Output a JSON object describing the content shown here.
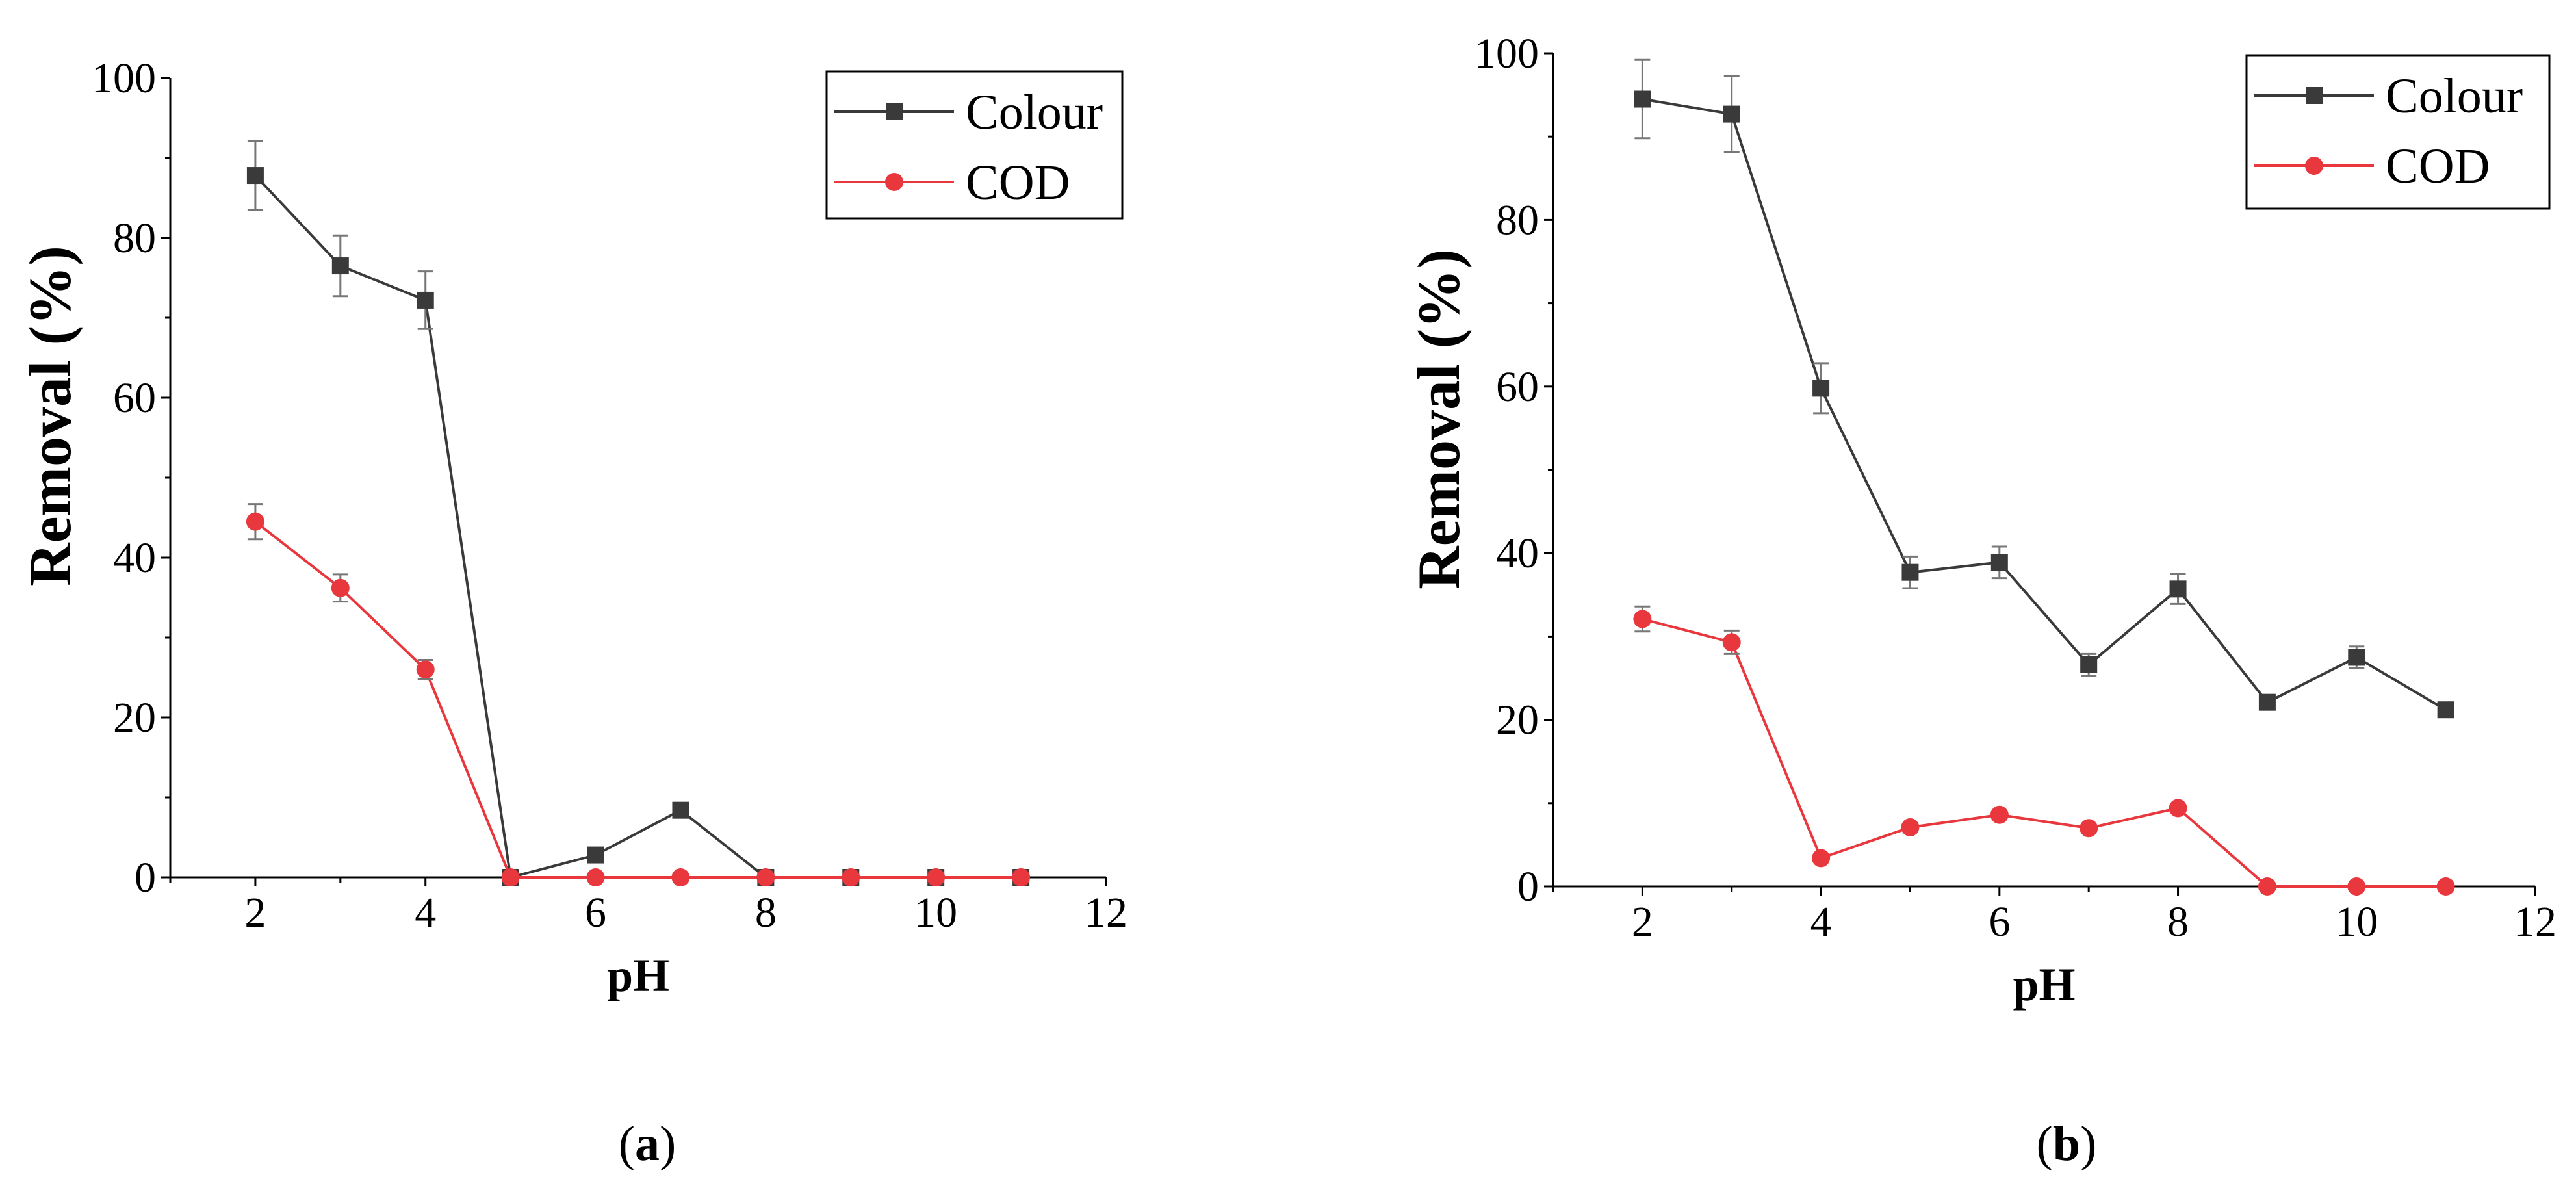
{
  "chart_data": [
    {
      "type": "line",
      "panel": "a",
      "panel_label": "a",
      "xlabel": "pH",
      "ylabel": "Removal (%)",
      "xlim": [
        1,
        12
      ],
      "ylim": [
        0,
        100
      ],
      "xticks": [
        2,
        4,
        6,
        8,
        10,
        12
      ],
      "yticks": [
        0,
        20,
        40,
        60,
        80,
        100
      ],
      "legend_position": "top-right",
      "series": [
        {
          "name": "Colour",
          "marker": "square",
          "color": "#3a3a3a",
          "x": [
            2,
            3,
            4,
            5,
            6,
            7,
            8,
            9,
            10,
            11
          ],
          "y": [
            87.8,
            76.5,
            72.2,
            0,
            2.8,
            8.4,
            0,
            0,
            0,
            0
          ],
          "error": [
            4.3,
            3.8,
            3.6,
            0,
            0,
            0,
            0,
            0,
            0,
            0
          ]
        },
        {
          "name": "COD",
          "marker": "circle",
          "color": "#e8373d",
          "x": [
            2,
            3,
            4,
            5,
            6,
            7,
            8,
            9,
            10,
            11
          ],
          "y": [
            44.5,
            36.2,
            26.0,
            0,
            0,
            0,
            0,
            0,
            0,
            0
          ],
          "error": [
            2.2,
            1.7,
            1.2,
            0,
            0,
            0,
            0,
            0,
            0,
            0
          ]
        }
      ]
    },
    {
      "type": "line",
      "panel": "b",
      "panel_label": "b",
      "xlabel": "pH",
      "ylabel": "Removal (%)",
      "xlim": [
        1,
        12
      ],
      "ylim": [
        0,
        100
      ],
      "xticks": [
        2,
        4,
        6,
        8,
        10,
        12
      ],
      "yticks": [
        0,
        20,
        40,
        60,
        80,
        100
      ],
      "legend_position": "top-right",
      "series": [
        {
          "name": "Colour",
          "marker": "square",
          "color": "#3a3a3a",
          "x": [
            2,
            3,
            4,
            5,
            6,
            7,
            8,
            9,
            10,
            11
          ],
          "y": [
            94.5,
            92.7,
            59.8,
            37.7,
            38.9,
            26.6,
            35.7,
            22.1,
            27.5,
            21.2
          ],
          "error": [
            4.7,
            4.6,
            3.0,
            1.9,
            1.9,
            1.3,
            1.8,
            0.6,
            1.3,
            0.5
          ]
        },
        {
          "name": "COD",
          "marker": "circle",
          "color": "#e8373d",
          "x": [
            2,
            3,
            4,
            5,
            6,
            7,
            8,
            9,
            10,
            11
          ],
          "y": [
            32.1,
            29.3,
            3.4,
            7.1,
            8.6,
            7.0,
            9.4,
            0,
            0,
            0
          ],
          "error": [
            1.5,
            1.4,
            0,
            0,
            0,
            0,
            0,
            0,
            0,
            0
          ]
        }
      ]
    }
  ]
}
